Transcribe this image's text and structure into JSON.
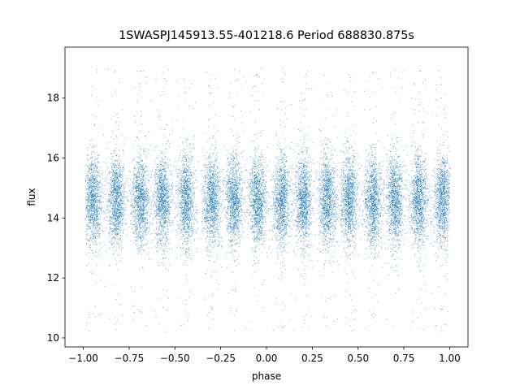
{
  "chart_data": {
    "type": "scatter",
    "title": "1SWASPJ145913.55-401218.6 Period 688830.875s",
    "xlabel": "phase",
    "ylabel": "flux",
    "xlim": [
      -1.1,
      1.1
    ],
    "ylim": [
      9.7,
      19.7
    ],
    "xticks": [
      -1.0,
      -0.75,
      -0.5,
      -0.25,
      0.0,
      0.25,
      0.5,
      0.75,
      1.0
    ],
    "xtick_labels": [
      "−1.00",
      "−0.75",
      "−0.50",
      "−0.25",
      "0.00",
      "0.25",
      "0.50",
      "0.75",
      "1.00"
    ],
    "yticks": [
      10,
      12,
      14,
      16,
      18
    ],
    "ytick_labels": [
      "10",
      "12",
      "14",
      "16",
      "18"
    ],
    "grid": false,
    "legend": "none",
    "marker_color": "#1f77b4",
    "point_count_approx": 18000,
    "flux_median": 14.6,
    "flux_spread": 0.75,
    "flux_range": [
      10.0,
      19.2
    ],
    "clump_centers": [
      -0.95,
      -0.82,
      -0.69,
      -0.57,
      -0.44,
      -0.3,
      -0.18,
      -0.05,
      0.08,
      0.2,
      0.33,
      0.45,
      0.58,
      0.7,
      0.83,
      0.96
    ],
    "clump_width": 0.045
  }
}
